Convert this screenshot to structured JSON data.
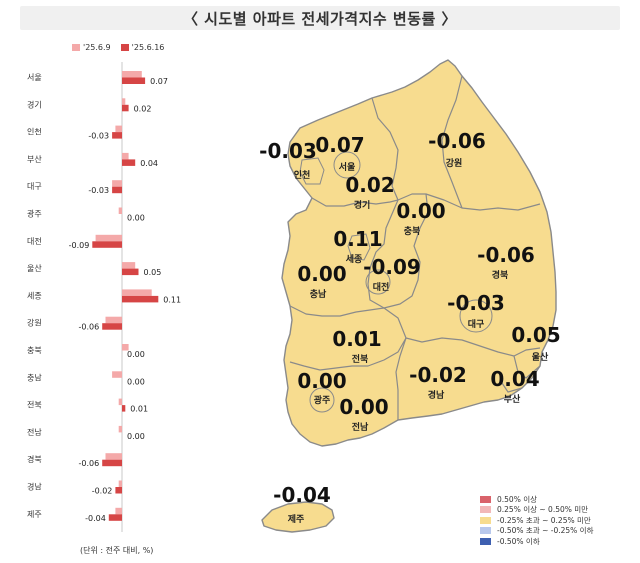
{
  "title": "〈 시도별 아파트 전세가격지수 변동률 〉",
  "legend_top": [
    {
      "label": "'25.6.9",
      "color": "#f4a9a9"
    },
    {
      "label": "'25.6.16",
      "color": "#d64545"
    }
  ],
  "unit_note": "(단위 : 전주 대비, %)",
  "chart_data": {
    "type": "bar",
    "orientation": "horizontal",
    "categories": [
      "서울",
      "경기",
      "인천",
      "부산",
      "대구",
      "광주",
      "대전",
      "울산",
      "세종",
      "강원",
      "충북",
      "충남",
      "전북",
      "전남",
      "경북",
      "경남",
      "제주"
    ],
    "series": [
      {
        "name": "'25.6.9",
        "values": [
          0.06,
          0.01,
          -0.02,
          0.02,
          -0.03,
          -0.01,
          -0.08,
          0.04,
          0.09,
          -0.05,
          0.02,
          -0.03,
          -0.01,
          -0.01,
          -0.05,
          -0.01,
          -0.02
        ]
      },
      {
        "name": "'25.6.16",
        "values": [
          0.07,
          0.02,
          -0.03,
          0.04,
          -0.03,
          0.0,
          -0.09,
          0.05,
          0.11,
          -0.06,
          0.0,
          0.0,
          0.01,
          0.0,
          -0.06,
          -0.02,
          -0.04
        ]
      }
    ],
    "data_labels": [
      "0.07",
      "0.02",
      "-0.03",
      "0.04",
      "-0.03",
      "0.00",
      "-0.09",
      "0.05",
      "0.11",
      "-0.06",
      "0.00",
      "0.00",
      "0.01",
      "0.00",
      "-0.06",
      "-0.02",
      "-0.04"
    ]
  },
  "map": {
    "regions": [
      {
        "name": "인천",
        "value": "-0.03"
      },
      {
        "name": "서울",
        "value": "0.07"
      },
      {
        "name": "경기",
        "value": "0.02"
      },
      {
        "name": "강원",
        "value": "-0.06"
      },
      {
        "name": "충북",
        "value": "0.00"
      },
      {
        "name": "세종",
        "value": "0.11"
      },
      {
        "name": "대전",
        "value": "-0.09"
      },
      {
        "name": "충남",
        "value": "0.00"
      },
      {
        "name": "경북",
        "value": "-0.06"
      },
      {
        "name": "대구",
        "value": "-0.03"
      },
      {
        "name": "울산",
        "value": "0.05"
      },
      {
        "name": "전북",
        "value": "0.01"
      },
      {
        "name": "광주",
        "value": "0.00"
      },
      {
        "name": "경남",
        "value": "-0.02"
      },
      {
        "name": "부산",
        "value": "0.04"
      },
      {
        "name": "전남",
        "value": "0.00"
      },
      {
        "name": "제주",
        "value": "-0.04"
      }
    ],
    "fill_color": "#f7dc8f",
    "border_color": "#8a8a8a"
  },
  "map_legend": [
    {
      "label": "0.50% 이상",
      "color": "#d9636b"
    },
    {
      "label": "0.25% 이상 ~ 0.50% 미만",
      "color": "#f2b8b8"
    },
    {
      "label": "-0.25% 초과 ~ 0.25% 미만",
      "color": "#f7dc8f"
    },
    {
      "label": "-0.50% 초과 ~ -0.25% 이하",
      "color": "#b8c8ec"
    },
    {
      "label": "-0.50% 이하",
      "color": "#3d5fb0"
    }
  ]
}
